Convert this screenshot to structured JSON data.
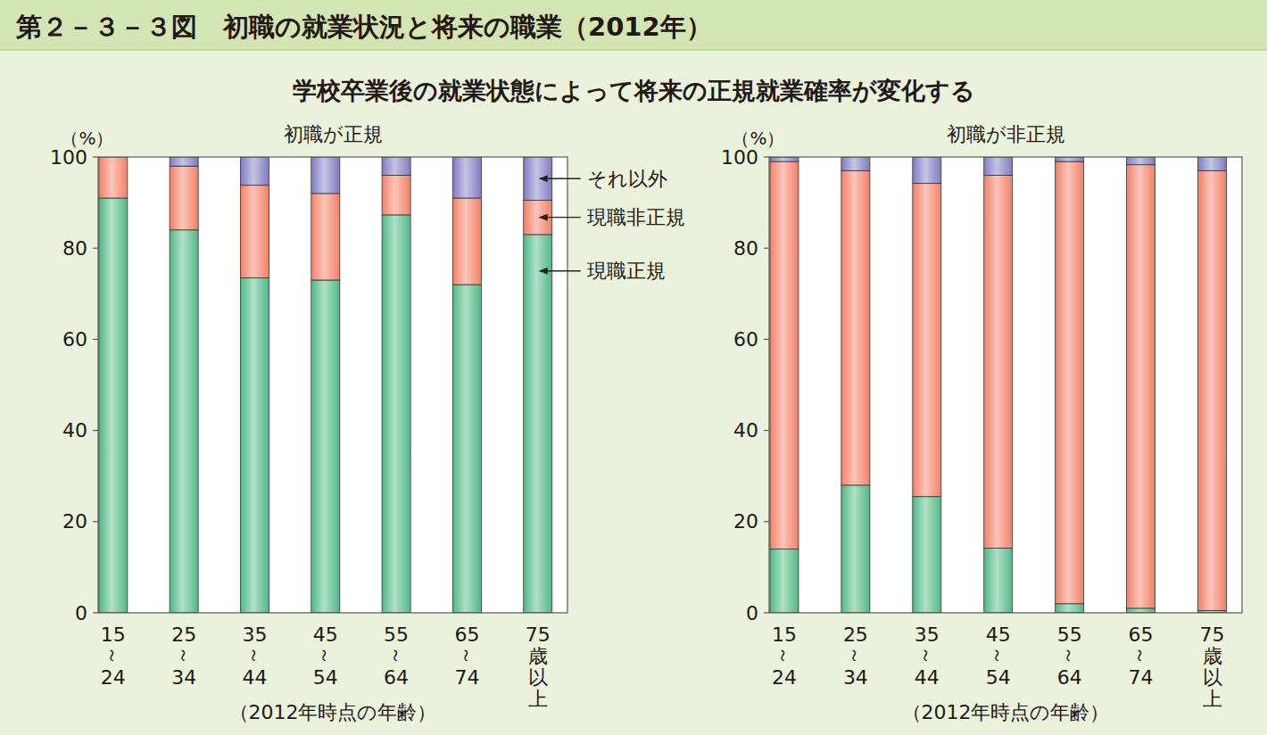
{
  "figure": {
    "title": "第２－３－３図　初職の就業状況と将来の職業（2012年）",
    "subtitle": "学校卒業後の就業状態によって将来の正規就業確率が変化する"
  },
  "chart_data": [
    {
      "type": "bar",
      "stacked": true,
      "title": "初職が正規",
      "y_label": "（%）",
      "x_label": "（2012年時点の年齢）",
      "categories": [
        "15～24",
        "25～34",
        "35～44",
        "45～54",
        "55～64",
        "65～74",
        "75歳以上"
      ],
      "series": [
        {
          "name": "現職正規",
          "color": "#4fb987",
          "values": [
            91,
            84,
            73.5,
            73,
            87.3,
            72,
            83
          ]
        },
        {
          "name": "現職非正規",
          "color": "#f47f66",
          "values": [
            9,
            14,
            20.3,
            19,
            8.7,
            19,
            7.5
          ]
        },
        {
          "name": "それ以外",
          "color": "#7f7bc4",
          "values": [
            0,
            2,
            6.2,
            8,
            4,
            9,
            9.5
          ]
        }
      ],
      "ylim": [
        0,
        100
      ],
      "yticks": [
        0,
        20,
        40,
        60,
        80,
        100
      ],
      "grid": false
    },
    {
      "type": "bar",
      "stacked": true,
      "title": "初職が非正規",
      "y_label": "（%）",
      "x_label": "（2012年時点の年齢）",
      "categories": [
        "15～24",
        "25～34",
        "35～44",
        "45～54",
        "55～64",
        "65～74",
        "75歳以上"
      ],
      "series": [
        {
          "color": "#4fb987",
          "values": [
            14,
            28,
            25.5,
            14.2,
            2,
            1,
            0.5
          ]
        },
        {
          "color": "#f47f66",
          "values": [
            85,
            69,
            68.7,
            81.8,
            97,
            97.3,
            96.5
          ]
        },
        {
          "color": "#7f7bc4",
          "values": [
            1,
            3,
            5.8,
            4,
            1,
            1.7,
            3
          ]
        }
      ],
      "ylim": [
        0,
        100
      ],
      "yticks": [
        0,
        20,
        40,
        60,
        80,
        100
      ],
      "grid": false
    }
  ]
}
